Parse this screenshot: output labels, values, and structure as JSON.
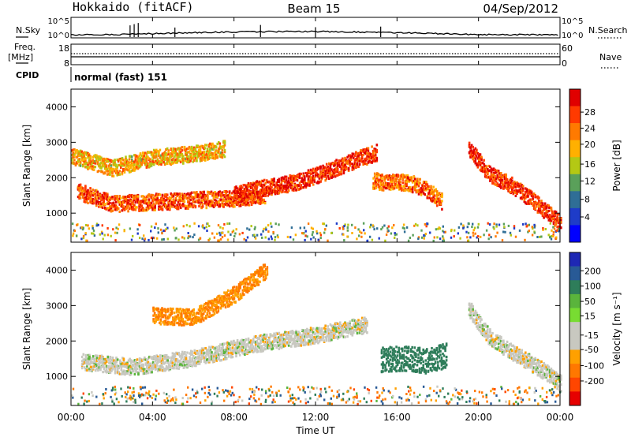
{
  "header": {
    "station": "Hokkaido (fitACF)",
    "beam": "Beam 15",
    "date": "04/Sep/2012"
  },
  "strips": {
    "nsky_label": "N.Sky",
    "nsearch_label": "N.Search",
    "noise_ticks": [
      "10^5",
      "10^0"
    ],
    "freq_label": "Freq.",
    "freq_unit": "[MHz]",
    "freq_ticks": [
      "18",
      "8"
    ],
    "nave_label": "Nave",
    "nave_ticks": [
      "60",
      "0"
    ],
    "cpid_label": "CPID",
    "cpid_value": "normal (fast) 151"
  },
  "axes": {
    "ylabel": "Slant Range [km]",
    "yticks": [
      "1000",
      "2000",
      "3000",
      "4000"
    ],
    "xlabel": "Time UT",
    "xticks": [
      "00:00",
      "04:00",
      "08:00",
      "12:00",
      "16:00",
      "20:00",
      "00:00"
    ]
  },
  "colorbars": {
    "power": {
      "label": "Power [dB]",
      "ticks": [
        "28",
        "24",
        "20",
        "16",
        "12",
        "8",
        "4"
      ],
      "colors": [
        "#e00000",
        "#ff3a00",
        "#ff7a00",
        "#ffb000",
        "#b4c814",
        "#5aa05a",
        "#2f6e96",
        "#1e3cc8",
        "#0000ff"
      ]
    },
    "velocity": {
      "label": "Velocity [m s⁻¹]",
      "ticks": [
        "200",
        "100",
        "50",
        "15",
        "-15",
        "-50",
        "-100",
        "-200"
      ],
      "colors": [
        "#1e28b4",
        "#285a96",
        "#2e7d5a",
        "#5ab43c",
        "#78dc32",
        "#c8c8c0",
        "#c8c8c0",
        "#ffa000",
        "#ff7800",
        "#ff4600",
        "#e60000"
      ]
    }
  },
  "chart_data": [
    {
      "type": "heatmap",
      "name": "power",
      "xlim": [
        "00:00",
        "24:00"
      ],
      "ylim": [
        180,
        4500
      ],
      "unit": "dB",
      "features": [
        {
          "label": "lower band",
          "t": [
            0.3,
            2,
            4,
            6,
            8,
            9.5
          ],
          "range_km": [
            1600,
            1250,
            1300,
            1350,
            1400,
            1500
          ],
          "power_db": 26
        },
        {
          "label": "upper band",
          "t": [
            0,
            2,
            4,
            6,
            7.5
          ],
          "range_km": [
            2600,
            2250,
            2550,
            2650,
            2800
          ],
          "power_db": 20
        },
        {
          "label": "rising arc",
          "t": [
            8,
            9,
            10,
            11,
            12.5,
            14,
            15
          ],
          "range_km": [
            1500,
            1650,
            1750,
            1850,
            2150,
            2500,
            2700
          ],
          "power_db": 28
        },
        {
          "label": "evening band",
          "t": [
            14.8,
            15.5,
            16.5,
            17.3,
            18.2
          ],
          "range_km": [
            1900,
            1850,
            1850,
            1700,
            1300
          ],
          "power_db": 24
        },
        {
          "label": "late descent",
          "t": [
            19.5,
            20.5,
            21.5,
            22.5,
            24
          ],
          "range_km": [
            2800,
            2100,
            1800,
            1400,
            700
          ],
          "power_db": 28
        }
      ]
    },
    {
      "type": "heatmap",
      "name": "velocity",
      "xlim": [
        "00:00",
        "24:00"
      ],
      "ylim": [
        180,
        4500
      ],
      "unit": "m/s",
      "features": [
        {
          "label": "ground scatter",
          "t": [
            0.5,
            3,
            6,
            9,
            12,
            14.5
          ],
          "range_km": [
            1400,
            1250,
            1500,
            1900,
            2150,
            2450
          ],
          "velocity": 0
        },
        {
          "label": "westward flow",
          "t": [
            4,
            6,
            8,
            9.6
          ],
          "range_km": [
            2700,
            2650,
            3300,
            4000
          ],
          "velocity": -50
        },
        {
          "label": "positive patch",
          "t": [
            15.2,
            16.5,
            17.5,
            18.4
          ],
          "range_km": [
            1450,
            1500,
            1400,
            1600
          ],
          "velocity": 50
        },
        {
          "label": "late ground scatter",
          "t": [
            19.5,
            20.5,
            21.5,
            23,
            24
          ],
          "range_km": [
            2900,
            2100,
            1700,
            1200,
            800
          ],
          "velocity": 0
        }
      ]
    }
  ]
}
